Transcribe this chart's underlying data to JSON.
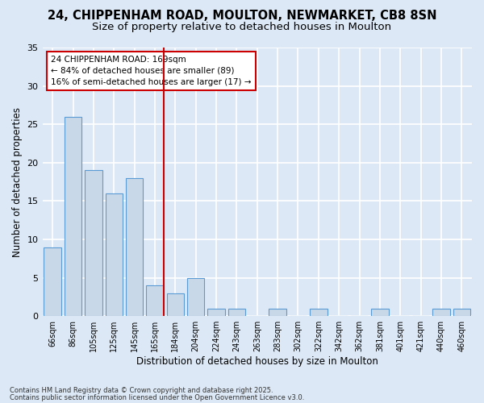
{
  "title": "24, CHIPPENHAM ROAD, MOULTON, NEWMARKET, CB8 8SN",
  "subtitle": "Size of property relative to detached houses in Moulton",
  "xlabel": "Distribution of detached houses by size in Moulton",
  "ylabel": "Number of detached properties",
  "categories": [
    "66sqm",
    "86sqm",
    "105sqm",
    "125sqm",
    "145sqm",
    "165sqm",
    "184sqm",
    "204sqm",
    "224sqm",
    "243sqm",
    "263sqm",
    "283sqm",
    "302sqm",
    "322sqm",
    "342sqm",
    "362sqm",
    "381sqm",
    "401sqm",
    "421sqm",
    "440sqm",
    "460sqm"
  ],
  "values": [
    9,
    26,
    19,
    16,
    18,
    4,
    3,
    5,
    1,
    1,
    0,
    1,
    0,
    1,
    0,
    0,
    1,
    0,
    0,
    1,
    1
  ],
  "bar_color": "#c8d8e8",
  "bar_edge_color": "#5b9bd5",
  "ref_line_color": "#cc0000",
  "annotation_text": "24 CHIPPENHAM ROAD: 169sqm\n← 84% of detached houses are smaller (89)\n16% of semi-detached houses are larger (17) →",
  "annotation_box_color": "#ffffff",
  "annotation_box_edge": "#cc0000",
  "ylim": [
    0,
    35
  ],
  "yticks": [
    0,
    5,
    10,
    15,
    20,
    25,
    30,
    35
  ],
  "background_color": "#dce8f5",
  "plot_bg_color": "#dce8f5",
  "grid_color": "#ffffff",
  "footnote1": "Contains HM Land Registry data © Crown copyright and database right 2025.",
  "footnote2": "Contains public sector information licensed under the Open Government Licence v3.0.",
  "title_fontsize": 10.5,
  "subtitle_fontsize": 9.5,
  "tick_fontsize": 7,
  "label_fontsize": 8.5,
  "annot_fontsize": 7.5,
  "footnote_fontsize": 6.0
}
